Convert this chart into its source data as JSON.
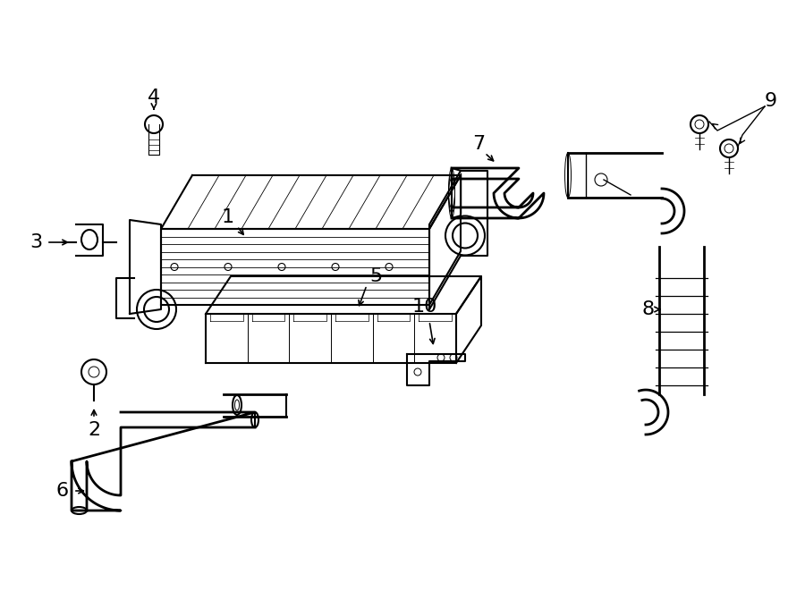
{
  "bg_color": "#ffffff",
  "line_color": "#000000",
  "line_width": 1.5,
  "fig_width": 9.0,
  "fig_height": 6.61,
  "font_size": 16
}
